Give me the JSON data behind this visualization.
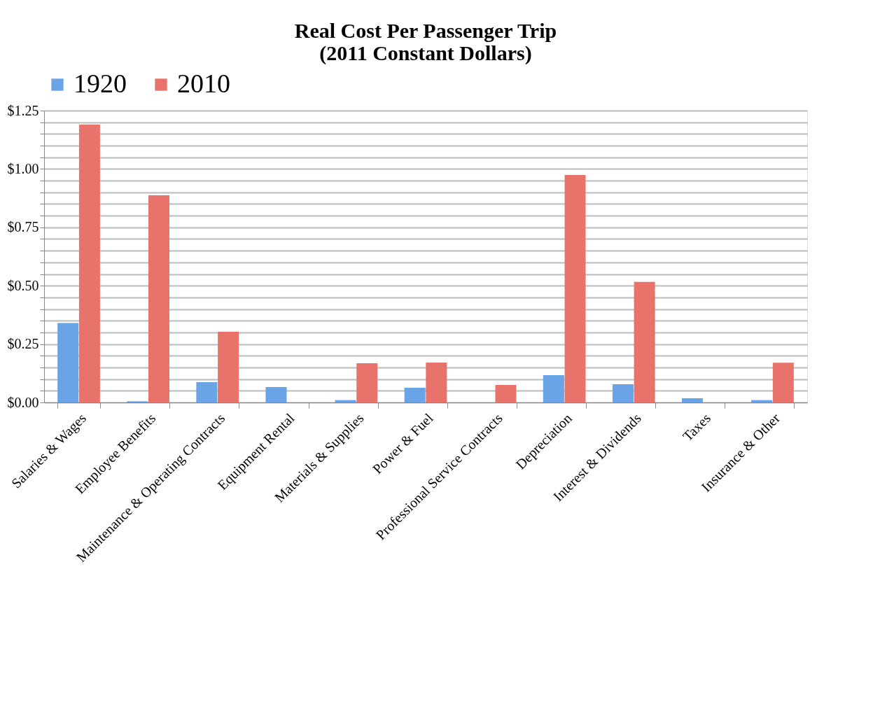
{
  "chart_data": {
    "type": "bar",
    "title": [
      "Real Cost Per Passenger Trip",
      "(2011 Constant Dollars)"
    ],
    "categories": [
      "Salaries & Wages",
      "Employee Benefits",
      "Maintenance & Operating Contracts",
      "Equipment Rental",
      "Materials & Supplies",
      "Power & Fuel",
      "Professional Service Contracts",
      "Depreciation",
      "Interest & Dividends",
      "Taxes",
      "Insurance & Other"
    ],
    "series": [
      {
        "name": "1920",
        "color": "#6aa3e6",
        "values": [
          0.34,
          0.005,
          0.087,
          0.066,
          0.01,
          0.063,
          0,
          0.117,
          0.078,
          0.018,
          0.01
        ]
      },
      {
        "name": "2010",
        "color": "#e8736b",
        "values": [
          1.19,
          0.887,
          0.303,
          0,
          0.168,
          0.171,
          0.075,
          0.974,
          0.516,
          0,
          0.17
        ]
      }
    ],
    "ylim": [
      0,
      1.25
    ],
    "yticks": [
      {
        "value": 0,
        "label": "$0.00"
      },
      {
        "value": 0.05,
        "label": null
      },
      {
        "value": 0.1,
        "label": null
      },
      {
        "value": 0.15,
        "label": null
      },
      {
        "value": 0.2,
        "label": null
      },
      {
        "value": 0.25,
        "label": "$0.25"
      },
      {
        "value": 0.3,
        "label": null
      },
      {
        "value": 0.35,
        "label": null
      },
      {
        "value": 0.4,
        "label": null
      },
      {
        "value": 0.45,
        "label": null
      },
      {
        "value": 0.5,
        "label": "$0.50"
      },
      {
        "value": 0.55,
        "label": null
      },
      {
        "value": 0.6,
        "label": null
      },
      {
        "value": 0.65,
        "label": null
      },
      {
        "value": 0.7,
        "label": null
      },
      {
        "value": 0.75,
        "label": "$0.75"
      },
      {
        "value": 0.8,
        "label": null
      },
      {
        "value": 0.85,
        "label": null
      },
      {
        "value": 0.9,
        "label": null
      },
      {
        "value": 0.95,
        "label": null
      },
      {
        "value": 1.0,
        "label": "$1.00"
      },
      {
        "value": 1.05,
        "label": null
      },
      {
        "value": 1.1,
        "label": null
      },
      {
        "value": 1.15,
        "label": null
      },
      {
        "value": 1.2,
        "label": null
      },
      {
        "value": 1.25,
        "label": "$1.25"
      }
    ],
    "grid": true,
    "legend": "top"
  }
}
